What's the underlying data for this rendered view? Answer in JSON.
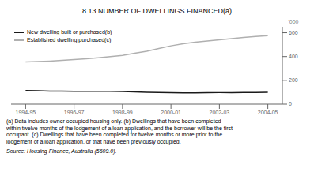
{
  "chart_data": {
    "type": "line",
    "title": "8.13  NUMBER OF DWELLINGS FINANCED(a)",
    "ylabel": "'000",
    "x": [
      1994.5,
      1995.0,
      1995.5,
      1996.0,
      1996.5,
      1997.0,
      1997.5,
      1998.0,
      1998.5,
      1999.0,
      1999.5,
      2000.0,
      2000.5,
      2001.0,
      2001.5,
      2002.0,
      2002.5,
      2003.0,
      2003.5,
      2004.0,
      2004.5
    ],
    "series": [
      {
        "name": "New dwelling built or purchased(b)",
        "color": "#1a1a1a",
        "values": [
          115,
          113,
          110,
          109,
          108,
          108,
          108,
          107,
          106,
          103,
          100,
          98,
          96,
          95,
          95,
          96,
          97,
          97,
          98,
          98,
          99
        ]
      },
      {
        "name": "Established dwelling purchased(c)",
        "color": "#b0b0b0",
        "values": [
          355,
          358,
          362,
          368,
          375,
          382,
          390,
          400,
          410,
          428,
          445,
          468,
          490,
          507,
          520,
          530,
          540,
          550,
          560,
          568,
          575
        ]
      }
    ],
    "xlim": [
      1993.9,
      2005.1
    ],
    "xticks": [
      {
        "value": 1994.5,
        "label": "1994-95"
      },
      {
        "value": 1996.5,
        "label": "1996-97"
      },
      {
        "value": 1998.5,
        "label": "1998-99"
      },
      {
        "value": 2000.5,
        "label": "2000-01"
      },
      {
        "value": 2002.5,
        "label": "2002-03"
      },
      {
        "value": 2004.5,
        "label": "2004-05"
      }
    ],
    "ylim": [
      0,
      650
    ],
    "yticks": [
      0,
      200,
      400,
      600
    ],
    "grid": false,
    "legend": "upper left",
    "annotations": [
      "(a) Data includes owner occupied housing only.  (b) Dwellings that have been completed",
      "within twelve months of the lodgement of a loan application, and the borrower will be the first",
      "occupant.  (c) Dwellings that have been completed for twelve months or more prior to the",
      "lodgement of a loan application, or that have been previously occupied."
    ],
    "source": "Source:  Housing Finance, Australia (5609.0)."
  }
}
